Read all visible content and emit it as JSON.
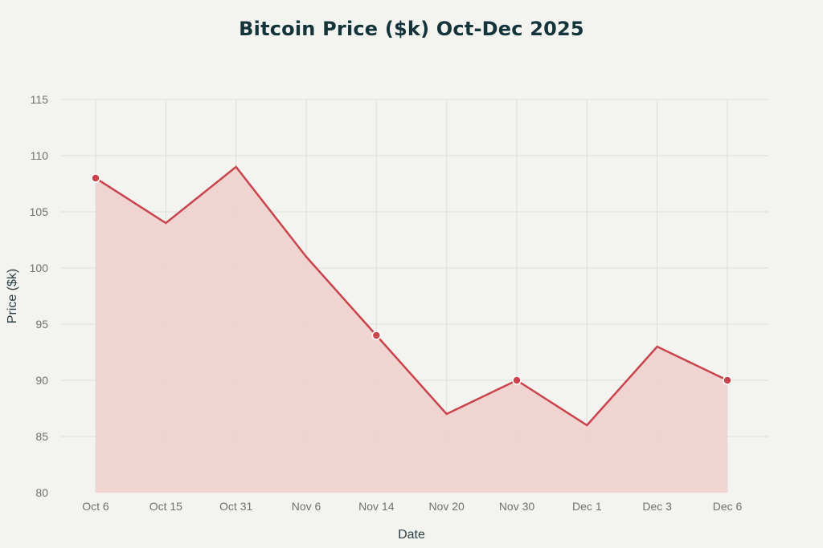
{
  "chart_data": {
    "type": "area",
    "title": "Bitcoin Price ($k) Oct-Dec 2025",
    "xlabel": "Date",
    "ylabel": "Price ($k)",
    "categories": [
      "Oct 6",
      "Oct 15",
      "Oct 31",
      "Nov 6",
      "Nov 14",
      "Nov 20",
      "Nov 30",
      "Dec 1",
      "Dec 3",
      "Dec 6"
    ],
    "series": [
      {
        "name": "Price ($k)",
        "values": [
          108,
          104,
          109,
          101,
          94,
          87,
          90,
          86,
          93,
          90
        ],
        "color": "#c8434a",
        "fill_color": "#efd0cd"
      }
    ],
    "markers_at": [
      "Oct 6",
      "Nov 14",
      "Nov 30",
      "Dec 6"
    ],
    "ylim": [
      80,
      115
    ],
    "yticks": [
      80,
      85,
      90,
      95,
      100,
      105,
      110,
      115
    ],
    "grid": true,
    "legend": "none"
  },
  "colors": {
    "background": "#f3f3ef",
    "title": "#13343b",
    "line": "#c8434a",
    "fill": "#efd0cd",
    "grid": "#dcdcd8",
    "tick_text": "#707070"
  }
}
